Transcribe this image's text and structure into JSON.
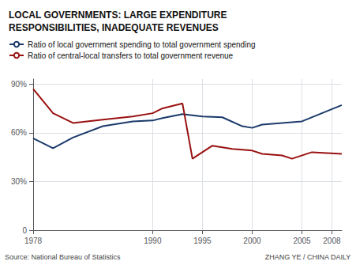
{
  "chart_data": {
    "type": "line",
    "title": "LOCAL GOVERNMENTS: LARGE EXPENDITURE\nRESPONSIBILITIES, INADEQUATE REVENUES",
    "series": [
      {
        "name": "Ratio of local government spending to total government spending",
        "color": "#1b3a6b",
        "x": [
          1978,
          1980,
          1982,
          1985,
          1988,
          1990,
          1991,
          1993,
          1995,
          1997,
          1999,
          2000,
          2001,
          2003,
          2005,
          2007,
          2009
        ],
        "values": [
          56.5,
          50.5,
          57,
          64,
          67,
          67.5,
          69,
          71.5,
          70,
          69.5,
          64,
          63,
          65,
          66,
          67,
          72,
          77
        ]
      },
      {
        "name": "Ratio of central-local transfers to total government revenue",
        "color": "#991111",
        "x": [
          1978,
          1980,
          1982,
          1985,
          1988,
          1990,
          1991,
          1993,
          1994,
          1996,
          1998,
          2000,
          2001,
          2003,
          2004,
          2006,
          2009
        ],
        "values": [
          87,
          72,
          66,
          68,
          70,
          72,
          75,
          78,
          44,
          52,
          50,
          49,
          47,
          46,
          44,
          48,
          47
        ]
      }
    ],
    "xlim": [
      1978,
      2009
    ],
    "xticks": [
      1978,
      1990,
      1995,
      2000,
      2005,
      2008
    ],
    "ylim": [
      0,
      93
    ],
    "yticks": [
      0,
      {
        "value": 30,
        "label": "30%"
      },
      {
        "value": 60,
        "label": "60%"
      },
      {
        "value": 90,
        "label": "90%"
      }
    ],
    "grid": true,
    "legend": "top",
    "annotations": [
      "Source: National Bureau of Statistics",
      "ZHANG YE / CHINA DAILY"
    ]
  }
}
